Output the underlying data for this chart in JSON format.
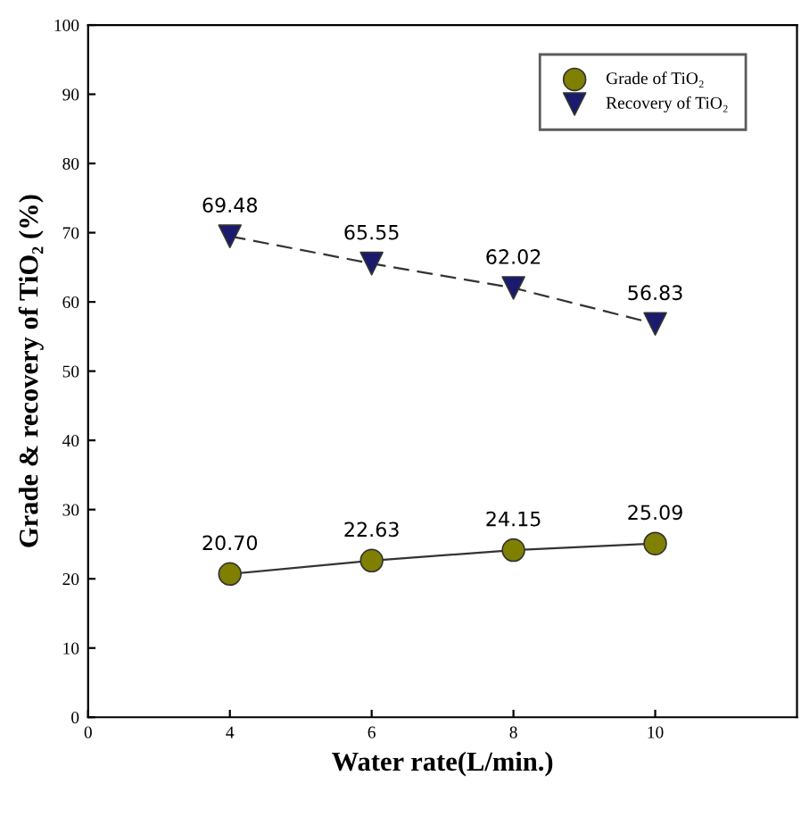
{
  "chart_data": {
    "type": "line",
    "xlabel": "Water rate(L/min.)",
    "ylabel": "Grade & recovery of TiO₂ (%)",
    "categories": [
      "0",
      "4",
      "6",
      "8",
      "10"
    ],
    "series": [
      {
        "name": "Grade of TiO₂",
        "color": "#808000",
        "values": [
          null,
          20.7,
          22.63,
          24.15,
          25.09
        ],
        "marker": "circle",
        "line_style": "solid",
        "value_labels": [
          null,
          "20.70",
          "22.63",
          "24.15",
          "25.09"
        ]
      },
      {
        "name": "Recovery of TiO₂",
        "color": "#1a1a6e",
        "values": [
          null,
          69.48,
          65.55,
          62.02,
          56.83
        ],
        "marker": "triangle",
        "line_style": "dashed",
        "value_labels": [
          null,
          "69.48",
          "65.55",
          "62.02",
          "56.83"
        ]
      }
    ],
    "ylim": [
      0,
      100
    ],
    "yticks": [
      0,
      10,
      20,
      30,
      40,
      50,
      60,
      70,
      80,
      90,
      100
    ],
    "grid": false,
    "legend": "top right"
  }
}
